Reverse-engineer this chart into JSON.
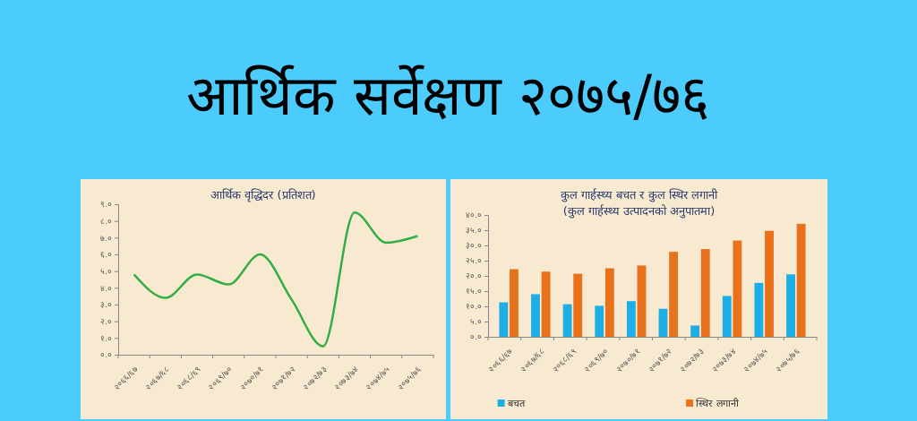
{
  "chart_data": [
    {
      "type": "other",
      "title": "आर्थिक सर्वेक्षण २०७५/७६"
    },
    {
      "type": "line",
      "title": "आर्थिक वृद्धिदर (प्रतिशत)",
      "categories": [
        "२०६६/६७",
        "२०६७/६८",
        "२०६८/६९",
        "२०६९/७०",
        "२०७०/७१",
        "२०७१/७२",
        "२०७२/७३",
        "२०७३/७४",
        "२०७४/७५",
        "२०७५/७६"
      ],
      "series": [
        {
          "color": "#33ad45",
          "values": [
            4.8,
            3.4,
            4.8,
            4.2,
            6.0,
            3.3,
            0.5,
            8.5,
            6.7,
            7.1
          ]
        }
      ],
      "ylim": [
        0,
        9
      ],
      "yticks": [
        {
          "value": 0,
          "label": "०.०"
        },
        {
          "value": 1,
          "label": "१.०"
        },
        {
          "value": 2,
          "label": "२.०"
        },
        {
          "value": 3,
          "label": "३.०"
        },
        {
          "value": 4,
          "label": "४.०"
        },
        {
          "value": 5,
          "label": "५.०"
        },
        {
          "value": 6,
          "label": "६.०"
        },
        {
          "value": 7,
          "label": "७.०"
        },
        {
          "value": 8,
          "label": "८.०"
        },
        {
          "value": 9,
          "label": "९.०"
        }
      ],
      "grid": false,
      "marker": "none"
    },
    {
      "type": "bar",
      "title": "कुल गार्हस्थ्य बचत र कुल स्थिर लगानी",
      "subtitle": "(कुल गार्हस्थ्य उत्पादनको अनुपातमा)",
      "categories": [
        "२०६६/६७",
        "२०६७/६८",
        "२०६८/६९",
        "२०६९/७०",
        "२०७०/७१",
        "२०७१/७२",
        "२०७२/७३",
        "२०७३/७४",
        "२०७४/७५",
        "२०७५/७६"
      ],
      "series": [
        {
          "name": "बचत",
          "color": "#1eaee6",
          "values": [
            11.3,
            14.0,
            10.7,
            10.2,
            11.7,
            9.2,
            3.7,
            13.4,
            17.7,
            20.5
          ]
        },
        {
          "name": "स्थिर लगानी",
          "color": "#e8711c",
          "values": [
            22.2,
            21.4,
            20.7,
            22.5,
            23.4,
            27.9,
            28.8,
            31.6,
            34.8,
            37.1
          ]
        }
      ],
      "ylim": [
        0,
        40
      ],
      "yticks": [
        {
          "value": 0,
          "label": "०.०"
        },
        {
          "value": 5,
          "label": "५.०"
        },
        {
          "value": 10,
          "label": "१०.०"
        },
        {
          "value": 15,
          "label": "१५.०"
        },
        {
          "value": 20,
          "label": "२०.०"
        },
        {
          "value": 25,
          "label": "२५.०"
        },
        {
          "value": 30,
          "label": "३०.०"
        },
        {
          "value": 35,
          "label": "३५.०"
        },
        {
          "value": 40,
          "label": "४०.०"
        }
      ],
      "grid": false,
      "legend": "bottom"
    }
  ]
}
